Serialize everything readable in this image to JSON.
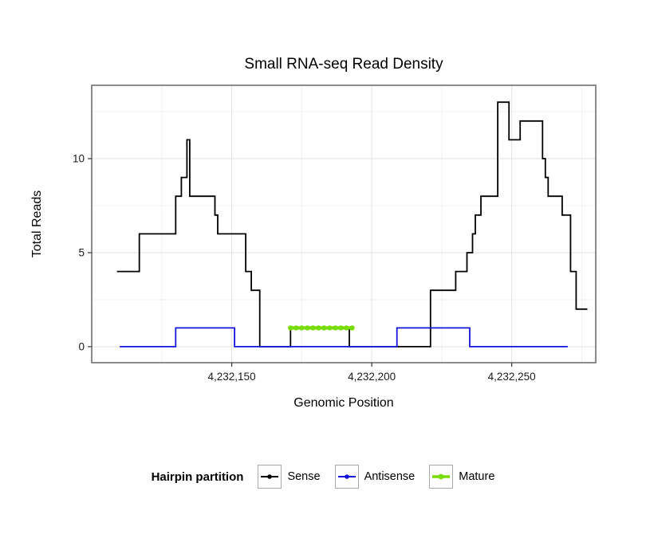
{
  "chart": {
    "title": "Small RNA-seq Read Density",
    "xlabel": "Genomic Position",
    "ylabel": "Total Reads"
  },
  "legend": {
    "title": "Hairpin partition",
    "items": [
      {
        "label": "Sense",
        "color": "#000000"
      },
      {
        "label": "Antisense",
        "color": "#1414dd"
      },
      {
        "label": "Mature",
        "color": "#77dd00"
      }
    ]
  },
  "chart_data": {
    "type": "line",
    "title": "Small RNA-seq Read Density",
    "xlabel": "Genomic Position",
    "ylabel": "Total Reads",
    "xlim": [
      4232100,
      4232280
    ],
    "ylim": [
      -0.85,
      13.9
    ],
    "grid": true,
    "legend_position": "bottom",
    "x_ticks": [
      {
        "value": 4232150,
        "label": "4,232,150"
      },
      {
        "value": 4232200,
        "label": "4,232,200"
      },
      {
        "value": 4232250,
        "label": "4,232,250"
      }
    ],
    "y_ticks": [
      {
        "value": 0,
        "label": "0"
      },
      {
        "value": 5,
        "label": "5"
      },
      {
        "value": 10,
        "label": "10"
      }
    ],
    "x_minor": [
      4232125,
      4232175,
      4232225,
      4232275
    ],
    "y_minor": [
      2.5,
      7.5,
      12.5
    ],
    "series": [
      {
        "name": "Sense",
        "color": "#000000",
        "width": 1.8,
        "runs": [
          [
            4232109,
            4232117,
            4
          ],
          [
            4232117,
            4232130,
            6
          ],
          [
            4232130,
            4232132,
            8
          ],
          [
            4232132,
            4232134,
            9
          ],
          [
            4232134,
            4232135,
            11
          ],
          [
            4232135,
            4232144,
            8
          ],
          [
            4232144,
            4232145,
            7
          ],
          [
            4232145,
            4232155,
            6
          ],
          [
            4232155,
            4232157,
            4
          ],
          [
            4232157,
            4232160,
            3
          ],
          [
            4232160,
            4232171,
            0
          ],
          [
            4232171,
            4232192,
            1
          ],
          [
            4232192,
            4232221,
            0
          ],
          [
            4232221,
            4232230,
            3
          ],
          [
            4232230,
            4232234,
            4
          ],
          [
            4232234,
            4232236,
            5
          ],
          [
            4232236,
            4232237,
            6
          ],
          [
            4232237,
            4232239,
            7
          ],
          [
            4232239,
            4232245,
            8
          ],
          [
            4232245,
            4232249,
            13
          ],
          [
            4232249,
            4232253,
            11
          ],
          [
            4232253,
            4232261,
            12
          ],
          [
            4232261,
            4232262,
            10
          ],
          [
            4232262,
            4232263,
            9
          ],
          [
            4232263,
            4232268,
            8
          ],
          [
            4232268,
            4232271,
            7
          ],
          [
            4232271,
            4232273,
            4
          ],
          [
            4232273,
            4232277,
            2
          ]
        ]
      },
      {
        "name": "Antisense",
        "color": "#1414dd",
        "width": 1.8,
        "runs": [
          [
            4232110,
            4232130,
            0
          ],
          [
            4232130,
            4232151,
            1
          ],
          [
            4232151,
            4232209,
            0
          ],
          [
            4232209,
            4232235,
            1
          ],
          [
            4232235,
            4232270,
            0
          ]
        ]
      },
      {
        "name": "Mature",
        "color": "#77dd00",
        "width": 4,
        "markers": true,
        "marker_step": 2,
        "runs": [
          [
            4232171,
            4232193,
            1
          ]
        ]
      }
    ]
  }
}
